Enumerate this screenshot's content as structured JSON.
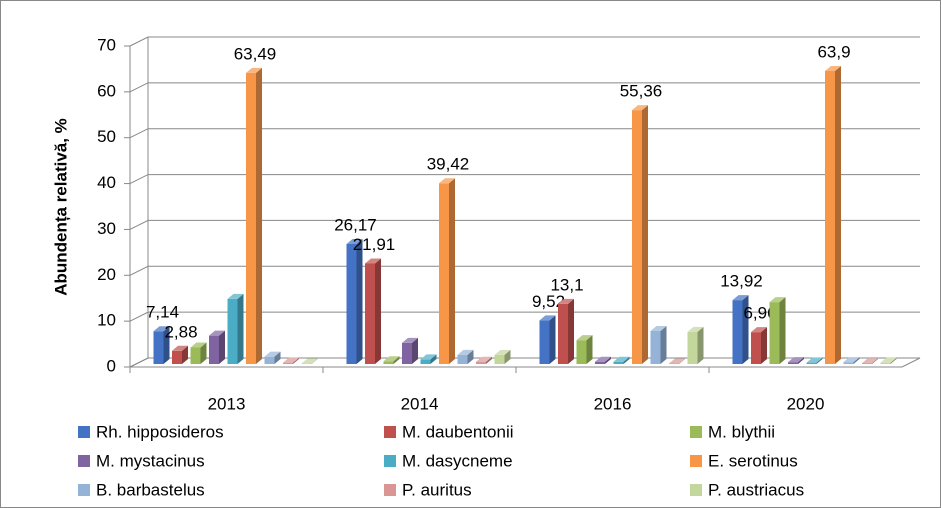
{
  "chart_data": {
    "type": "bar3d",
    "y_label": "Abundența relativă, %",
    "categories": [
      "2013",
      "2014",
      "2016",
      "2020"
    ],
    "ylim": [
      0,
      70
    ],
    "yticks": [
      0,
      10,
      20,
      30,
      40,
      50,
      60,
      70
    ],
    "grid": true,
    "legend": "bottom",
    "series": [
      {
        "name": "Rh. hipposideros",
        "color": "#4472c4",
        "values": [
          7.14,
          26.17,
          9.52,
          13.92
        ],
        "value_labels": [
          "7,14",
          "26,17",
          "9,52",
          "13,92"
        ]
      },
      {
        "name": "M. daubentonii",
        "color": "#c0504d",
        "values": [
          2.88,
          21.91,
          13.1,
          6.96
        ],
        "value_labels": [
          "2,88",
          "21,91",
          "13,1",
          "6,96"
        ]
      },
      {
        "name": "M. blythii",
        "color": "#9bbb59",
        "values": [
          3.6,
          0.6,
          5.2,
          13.5
        ]
      },
      {
        "name": "M. mystacinus",
        "color": "#8064a2",
        "values": [
          6.2,
          4.6,
          0.5,
          0.4
        ]
      },
      {
        "name": "M. dasycneme",
        "color": "#4bacc6",
        "values": [
          14.2,
          1.0,
          0.5,
          0.3
        ]
      },
      {
        "name": "E. serotinus",
        "color": "#f79646",
        "values": [
          63.49,
          39.42,
          55.36,
          63.9
        ],
        "value_labels": [
          "63,49",
          "39,42",
          "55,36",
          "63,9"
        ]
      },
      {
        "name": "B. barbastelus",
        "color": "#95b3d7",
        "values": [
          1.6,
          2.0,
          7.2,
          0.4
        ]
      },
      {
        "name": "P. auritus",
        "color": "#d99694",
        "values": [
          0.3,
          0.5,
          0.1,
          0.2
        ]
      },
      {
        "name": "P. austriacus",
        "color": "#c3d69b",
        "values": [
          0.1,
          2.0,
          7.0,
          0.3
        ]
      }
    ]
  }
}
